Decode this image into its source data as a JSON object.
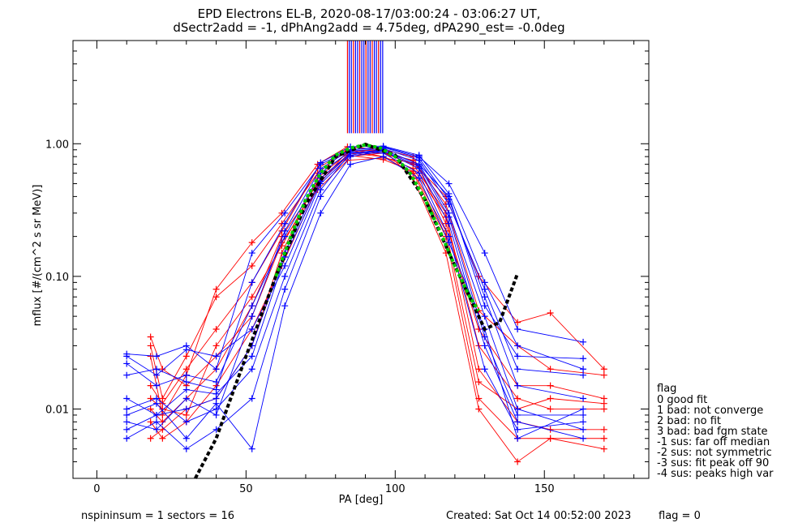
{
  "chart_data": {
    "type": "line",
    "title": "EPD Electrons EL-B, 2020-08-17/03:00:24 - 03:06:27 UT,",
    "subtitle": "dSectr2add = -1, dPhAng2add = 4.75deg, dPA290_est=  -0.0deg",
    "xlabel": "PA [deg]",
    "ylabel": "mflux [#/(cm^2 s sr MeV)]",
    "xlim": [
      -8,
      185
    ],
    "ylim": [
      0.003,
      6
    ],
    "yscale": "log",
    "xticks": [
      "0",
      "50",
      "100",
      "150"
    ],
    "yticks": [
      "0.01",
      "0.10",
      "1.00"
    ],
    "grid": false,
    "colors": {
      "red": "#ff0000",
      "blue": "#0000ff",
      "fit_black": "#000000",
      "fit_green": "#00cc00"
    },
    "vertical_lines": {
      "x": [
        84,
        84.6,
        85.3,
        86,
        86.7,
        87.4,
        88.1,
        88.8,
        89.5,
        90.2,
        90.9,
        91.6,
        92.3,
        93,
        93.7,
        94.4,
        95.1,
        95.8
      ],
      "y_from": 1.2,
      "y_to": 6
    },
    "series_pa": {
      "red": [
        18,
        22,
        30,
        40,
        52,
        62,
        74,
        84,
        96,
        106,
        117,
        128,
        141,
        152,
        170
      ],
      "blue": [
        10,
        20,
        30,
        40,
        52,
        63,
        75,
        85,
        96,
        108,
        118,
        130,
        141,
        163
      ]
    },
    "series": [
      {
        "color": "red",
        "values": [
          0.03,
          0.012,
          0.025,
          0.07,
          0.12,
          0.25,
          0.6,
          0.9,
          0.85,
          0.75,
          0.35,
          0.055,
          0.03,
          0.02,
          0.018
        ]
      },
      {
        "color": "red",
        "values": [
          0.006,
          0.007,
          0.01,
          0.012,
          0.03,
          0.15,
          0.55,
          0.85,
          0.8,
          0.6,
          0.2,
          0.012,
          0.006,
          0.006,
          0.006
        ]
      },
      {
        "color": "red",
        "values": [
          0.025,
          0.009,
          0.018,
          0.08,
          0.18,
          0.3,
          0.7,
          0.95,
          0.9,
          0.8,
          0.25,
          0.04,
          0.015,
          0.015,
          0.012
        ]
      },
      {
        "color": "red",
        "values": [
          0.01,
          0.008,
          0.012,
          0.02,
          0.06,
          0.2,
          0.5,
          0.8,
          0.85,
          0.7,
          0.3,
          0.02,
          0.008,
          0.007,
          0.007
        ]
      },
      {
        "color": "red",
        "values": [
          0.015,
          0.011,
          0.02,
          0.04,
          0.09,
          0.22,
          0.65,
          0.9,
          0.8,
          0.65,
          0.28,
          0.03,
          0.012,
          0.01,
          0.01
        ]
      },
      {
        "color": "red",
        "values": [
          0.035,
          0.02,
          0.015,
          0.025,
          0.05,
          0.18,
          0.45,
          0.75,
          0.78,
          0.72,
          0.4,
          0.1,
          0.045,
          0.053,
          0.02
        ]
      },
      {
        "color": "red",
        "values": [
          0.008,
          0.006,
          0.008,
          0.015,
          0.04,
          0.12,
          0.48,
          0.88,
          0.9,
          0.55,
          0.15,
          0.01,
          0.004,
          0.006,
          0.005
        ]
      },
      {
        "color": "red",
        "values": [
          0.012,
          0.01,
          0.009,
          0.03,
          0.07,
          0.17,
          0.52,
          0.82,
          0.76,
          0.62,
          0.22,
          0.016,
          0.01,
          0.012,
          0.011
        ]
      },
      {
        "color": "blue",
        "values": [
          0.026,
          0.025,
          0.03,
          0.02,
          0.15,
          0.3,
          0.7,
          0.9,
          0.95,
          0.8,
          0.5,
          0.15,
          0.04,
          0.032
        ]
      },
      {
        "color": "blue",
        "values": [
          0.007,
          0.009,
          0.01,
          0.012,
          0.03,
          0.15,
          0.55,
          0.85,
          0.9,
          0.7,
          0.3,
          0.05,
          0.01,
          0.007
        ]
      },
      {
        "color": "blue",
        "values": [
          0.022,
          0.015,
          0.018,
          0.016,
          0.06,
          0.2,
          0.6,
          0.88,
          0.92,
          0.75,
          0.35,
          0.08,
          0.02,
          0.018
        ]
      },
      {
        "color": "blue",
        "values": [
          0.006,
          0.008,
          0.005,
          0.007,
          0.012,
          0.08,
          0.4,
          0.8,
          0.88,
          0.65,
          0.25,
          0.03,
          0.008,
          0.006
        ]
      },
      {
        "color": "blue",
        "values": [
          0.01,
          0.012,
          0.008,
          0.01,
          0.02,
          0.1,
          0.45,
          0.85,
          0.85,
          0.6,
          0.2,
          0.02,
          0.007,
          0.008
        ]
      },
      {
        "color": "blue",
        "values": [
          0.025,
          0.018,
          0.028,
          0.025,
          0.04,
          0.12,
          0.5,
          0.82,
          0.9,
          0.7,
          0.4,
          0.06,
          0.025,
          0.024
        ]
      },
      {
        "color": "blue",
        "values": [
          0.008,
          0.007,
          0.012,
          0.009,
          0.05,
          0.22,
          0.65,
          0.9,
          0.94,
          0.78,
          0.38,
          0.07,
          0.015,
          0.012
        ]
      },
      {
        "color": "blue",
        "values": [
          0.009,
          0.011,
          0.006,
          0.011,
          0.005,
          0.06,
          0.3,
          0.7,
          0.8,
          0.55,
          0.18,
          0.04,
          0.006,
          0.01
        ]
      },
      {
        "color": "blue",
        "values": [
          0.018,
          0.02,
          0.016,
          0.014,
          0.09,
          0.25,
          0.72,
          0.95,
          0.96,
          0.82,
          0.42,
          0.09,
          0.03,
          0.02
        ]
      },
      {
        "color": "blue",
        "values": [
          0.012,
          0.009,
          0.014,
          0.013,
          0.025,
          0.14,
          0.52,
          0.86,
          0.88,
          0.68,
          0.28,
          0.035,
          0.009,
          0.009
        ]
      }
    ],
    "fit_dashed_black": {
      "x": [
        33,
        40,
        50,
        60,
        70,
        80,
        90,
        100,
        110,
        120,
        130,
        135,
        141
      ],
      "y": [
        0.003,
        0.006,
        0.025,
        0.1,
        0.35,
        0.8,
        0.99,
        0.82,
        0.38,
        0.12,
        0.04,
        0.045,
        0.105
      ]
    },
    "fit_dotted_green": {
      "x": [
        60,
        65,
        70,
        75,
        80,
        85,
        90,
        95,
        100,
        105,
        110,
        115,
        120,
        125,
        128
      ],
      "y": [
        0.1,
        0.2,
        0.38,
        0.6,
        0.82,
        0.93,
        0.98,
        0.93,
        0.8,
        0.6,
        0.38,
        0.22,
        0.12,
        0.07,
        0.055
      ]
    },
    "legend": {
      "title": "flag",
      "items": [
        " 0 good fit",
        " 1 bad: not converge",
        " 2 bad: no fit",
        " 3 bad: bad fgm state",
        "-1 sus: far off median",
        "-2 sus: not symmetric",
        "-3 sus: fit peak off 90",
        "-4 sus: peaks high var"
      ]
    },
    "footer": {
      "left": "nspininsum =  1  sectors = 16",
      "created": "Created: Sat Oct 14 00:52:00 2023",
      "flag": "flag = 0"
    }
  }
}
